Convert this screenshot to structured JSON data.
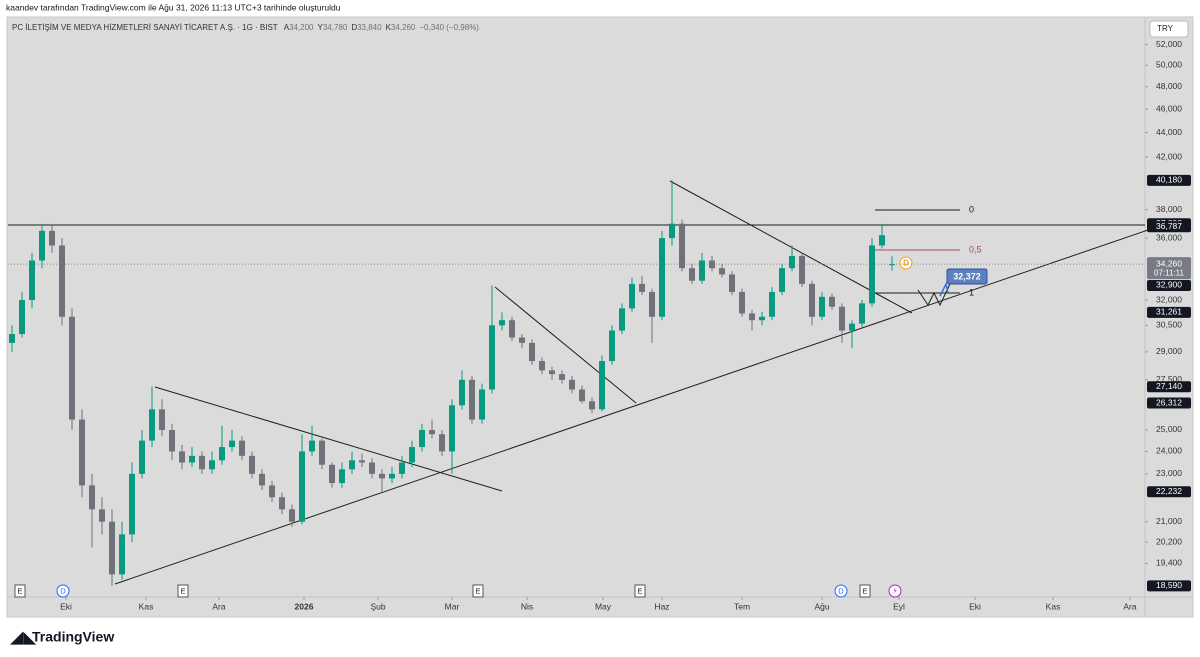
{
  "header": {
    "credit": "kaandev tarafından TradingView.com ile Ağu 31, 2026 11:13 UTC+3 tarihinde oluşturuldu",
    "currency": "TRY",
    "brand": "TradingView"
  },
  "chart_data": {
    "type": "candlestick",
    "title": "PC İLETİŞİM VE MEDYA HİZMETLERİ SANAYİ TİCARET A.Ş. · 1G · BIST",
    "legend_items": [
      {
        "key": "A",
        "value": "34,200"
      },
      {
        "key": "Y",
        "value": "34,780"
      },
      {
        "key": "D",
        "value": "33,840"
      },
      {
        "key": "K",
        "value": "34,260"
      }
    ],
    "change": "−0,340 (−0,98%)",
    "up_color": "#089981",
    "down_color": "#6f7279",
    "log_scale": true,
    "grid": false,
    "xlim": [
      -0.4,
      113.3
    ],
    "xticks": [
      {
        "value": 5.4,
        "label": "Eki"
      },
      {
        "value": 13.4,
        "label": "Kas"
      },
      {
        "value": 20.7,
        "label": "Ara"
      },
      {
        "value": 29.2,
        "label": "2026"
      },
      {
        "value": 36.6,
        "label": "Şub"
      },
      {
        "value": 44,
        "label": "Mar"
      },
      {
        "value": 51.5,
        "label": "Nis"
      },
      {
        "value": 59.1,
        "label": "May"
      },
      {
        "value": 65,
        "label": "Haz"
      },
      {
        "value": 73,
        "label": "Tem"
      },
      {
        "value": 81,
        "label": "Ağu"
      },
      {
        "value": 88.7,
        "label": "Eyl"
      },
      {
        "value": 96.3,
        "label": "Eki"
      },
      {
        "value": 104.1,
        "label": "Kas"
      },
      {
        "value": 111.8,
        "label": "Ara"
      }
    ],
    "ylim": [
      18200,
      54700
    ],
    "yticks": [
      {
        "value": 52000,
        "label": "52,000"
      },
      {
        "value": 50000,
        "label": "50,000"
      },
      {
        "value": 48000,
        "label": "48,000"
      },
      {
        "value": 46000,
        "label": "46,000"
      },
      {
        "value": 44000,
        "label": "44,000"
      },
      {
        "value": 42000,
        "label": "42,000"
      },
      {
        "value": 38000,
        "label": "38,000"
      },
      {
        "value": 36000,
        "label": "36,000"
      },
      {
        "value": 32000,
        "label": "32,000"
      },
      {
        "value": 30500,
        "label": "30,500"
      },
      {
        "value": 29000,
        "label": "29,000"
      },
      {
        "value": 27500,
        "label": "27,500"
      },
      {
        "value": 25000,
        "label": "25,000"
      },
      {
        "value": 24000,
        "label": "24,000"
      },
      {
        "value": 23000,
        "label": "23,000"
      },
      {
        "value": 21000,
        "label": "21,000"
      },
      {
        "value": 20200,
        "label": "20,200"
      },
      {
        "value": 19400,
        "label": "19,400"
      }
    ],
    "price_labels": [
      {
        "value": 40180,
        "label": "40,180",
        "color": "#131722"
      },
      {
        "value": 37000,
        "label": "37,000",
        "color": "#131722"
      },
      {
        "value": 36787,
        "label": "36,787",
        "color": "#131722"
      },
      {
        "value": 34260,
        "label": "34,260",
        "color": "#787b86"
      },
      {
        "value": 32900,
        "label": "32,900",
        "color": "#131722"
      },
      {
        "value": 31261,
        "label": "31,261",
        "color": "#131722"
      },
      {
        "value": 27140,
        "label": "27,140",
        "color": "#131722"
      },
      {
        "value": 26312,
        "label": "26,312",
        "color": "#131722"
      },
      {
        "value": 22232,
        "label": "22,232",
        "color": "#131722"
      },
      {
        "value": 18590,
        "label": "18,590",
        "color": "#131722"
      }
    ],
    "countdown": "07:11:11",
    "fib_labels": [
      "0",
      "0,5",
      "1"
    ],
    "callout": "32,372",
    "events": [
      "E",
      "D",
      "E",
      "E",
      "E",
      "D",
      "E"
    ],
    "candles": [
      [
        29500,
        30500,
        29000,
        30000
      ],
      [
        30000,
        32500,
        29800,
        32000
      ],
      [
        32000,
        35000,
        31500,
        34500
      ],
      [
        34500,
        37000,
        34000,
        36500
      ],
      [
        36500,
        37000,
        35000,
        35500
      ],
      [
        35500,
        36000,
        30500,
        31000
      ],
      [
        31000,
        31500,
        25000,
        25500
      ],
      [
        25500,
        26000,
        22000,
        22500
      ],
      [
        22500,
        23000,
        20000,
        21500
      ],
      [
        21500,
        22000,
        20500,
        21000
      ],
      [
        21000,
        21500,
        18590,
        19000
      ],
      [
        19000,
        21000,
        18800,
        20500
      ],
      [
        20500,
        23500,
        20200,
        23000
      ],
      [
        23000,
        25000,
        22800,
        24500
      ],
      [
        24500,
        27140,
        24200,
        26000
      ],
      [
        26000,
        26500,
        24700,
        25000
      ],
      [
        25000,
        25300,
        23600,
        24000
      ],
      [
        24000,
        24300,
        23200,
        23500
      ],
      [
        23500,
        24200,
        23300,
        23800
      ],
      [
        23800,
        24000,
        23000,
        23200
      ],
      [
        23200,
        24000,
        23000,
        23600
      ],
      [
        23600,
        25200,
        23400,
        24200
      ],
      [
        24200,
        25000,
        24000,
        24500
      ],
      [
        24500,
        24700,
        23600,
        23800
      ],
      [
        23800,
        24000,
        22800,
        23000
      ],
      [
        23000,
        23200,
        22300,
        22500
      ],
      [
        22500,
        22700,
        21800,
        22000
      ],
      [
        22000,
        22200,
        21300,
        21500
      ],
      [
        21500,
        21700,
        20800,
        21000
      ],
      [
        21000,
        24800,
        20900,
        24000
      ],
      [
        24000,
        25200,
        23800,
        24500
      ],
      [
        24500,
        24600,
        23200,
        23400
      ],
      [
        23400,
        23500,
        22400,
        22600
      ],
      [
        22600,
        23500,
        22400,
        23200
      ],
      [
        23200,
        24000,
        23000,
        23600
      ],
      [
        23600,
        23900,
        23300,
        23500
      ],
      [
        23500,
        23700,
        22800,
        23000
      ],
      [
        23000,
        23200,
        22232,
        22800
      ],
      [
        22800,
        23300,
        22600,
        23000
      ],
      [
        23000,
        23800,
        22800,
        23500
      ],
      [
        23500,
        24500,
        23300,
        24200
      ],
      [
        24200,
        25300,
        24000,
        25000
      ],
      [
        25000,
        25500,
        24600,
        24800
      ],
      [
        24800,
        25000,
        23800,
        24000
      ],
      [
        24000,
        26500,
        23000,
        26200
      ],
      [
        26200,
        28000,
        26000,
        27500
      ],
      [
        27500,
        27700,
        25300,
        25500
      ],
      [
        25500,
        27300,
        25300,
        27000
      ],
      [
        27000,
        32900,
        26800,
        30500
      ],
      [
        30500,
        31261,
        30200,
        30800
      ],
      [
        30800,
        31000,
        29600,
        29800
      ],
      [
        29800,
        30000,
        29200,
        29500
      ],
      [
        29500,
        29700,
        28300,
        28500
      ],
      [
        28500,
        28700,
        27800,
        28000
      ],
      [
        28000,
        28200,
        27500,
        27800
      ],
      [
        27800,
        28000,
        27300,
        27500
      ],
      [
        27500,
        27700,
        26800,
        27000
      ],
      [
        27000,
        27200,
        26300,
        26400
      ],
      [
        26400,
        26600,
        25800,
        26000
      ],
      [
        26000,
        28800,
        25900,
        28500
      ],
      [
        28500,
        30500,
        28300,
        30200
      ],
      [
        30200,
        31800,
        30000,
        31500
      ],
      [
        31500,
        33400,
        31300,
        33000
      ],
      [
        33000,
        33500,
        32300,
        32500
      ],
      [
        32500,
        32700,
        29500,
        31000
      ],
      [
        31000,
        36500,
        30800,
        36000
      ],
      [
        36000,
        40180,
        35500,
        37000
      ],
      [
        37000,
        37300,
        33800,
        34000
      ],
      [
        34000,
        34300,
        33000,
        33200
      ],
      [
        33200,
        35000,
        33000,
        34500
      ],
      [
        34500,
        34800,
        33800,
        34000
      ],
      [
        34000,
        34300,
        33400,
        33600
      ],
      [
        33600,
        33800,
        32300,
        32500
      ],
      [
        32500,
        32700,
        31000,
        31200
      ],
      [
        31200,
        31400,
        30200,
        30800
      ],
      [
        30800,
        31300,
        30500,
        31000
      ],
      [
        31000,
        32800,
        30800,
        32500
      ],
      [
        32500,
        34300,
        32300,
        34000
      ],
      [
        34000,
        35500,
        33800,
        34800
      ],
      [
        34800,
        35000,
        32800,
        33000
      ],
      [
        33000,
        33200,
        30500,
        31000
      ],
      [
        31000,
        32500,
        30800,
        32200
      ],
      [
        32200,
        32400,
        31400,
        31600
      ],
      [
        31600,
        31800,
        29500,
        30200
      ],
      [
        30200,
        30800,
        29200,
        30600
      ],
      [
        30600,
        32000,
        30400,
        31800
      ],
      [
        31800,
        36000,
        31600,
        35500
      ],
      [
        35500,
        37000,
        35300,
        36200
      ],
      [
        34200,
        34780,
        33840,
        34260
      ]
    ]
  }
}
